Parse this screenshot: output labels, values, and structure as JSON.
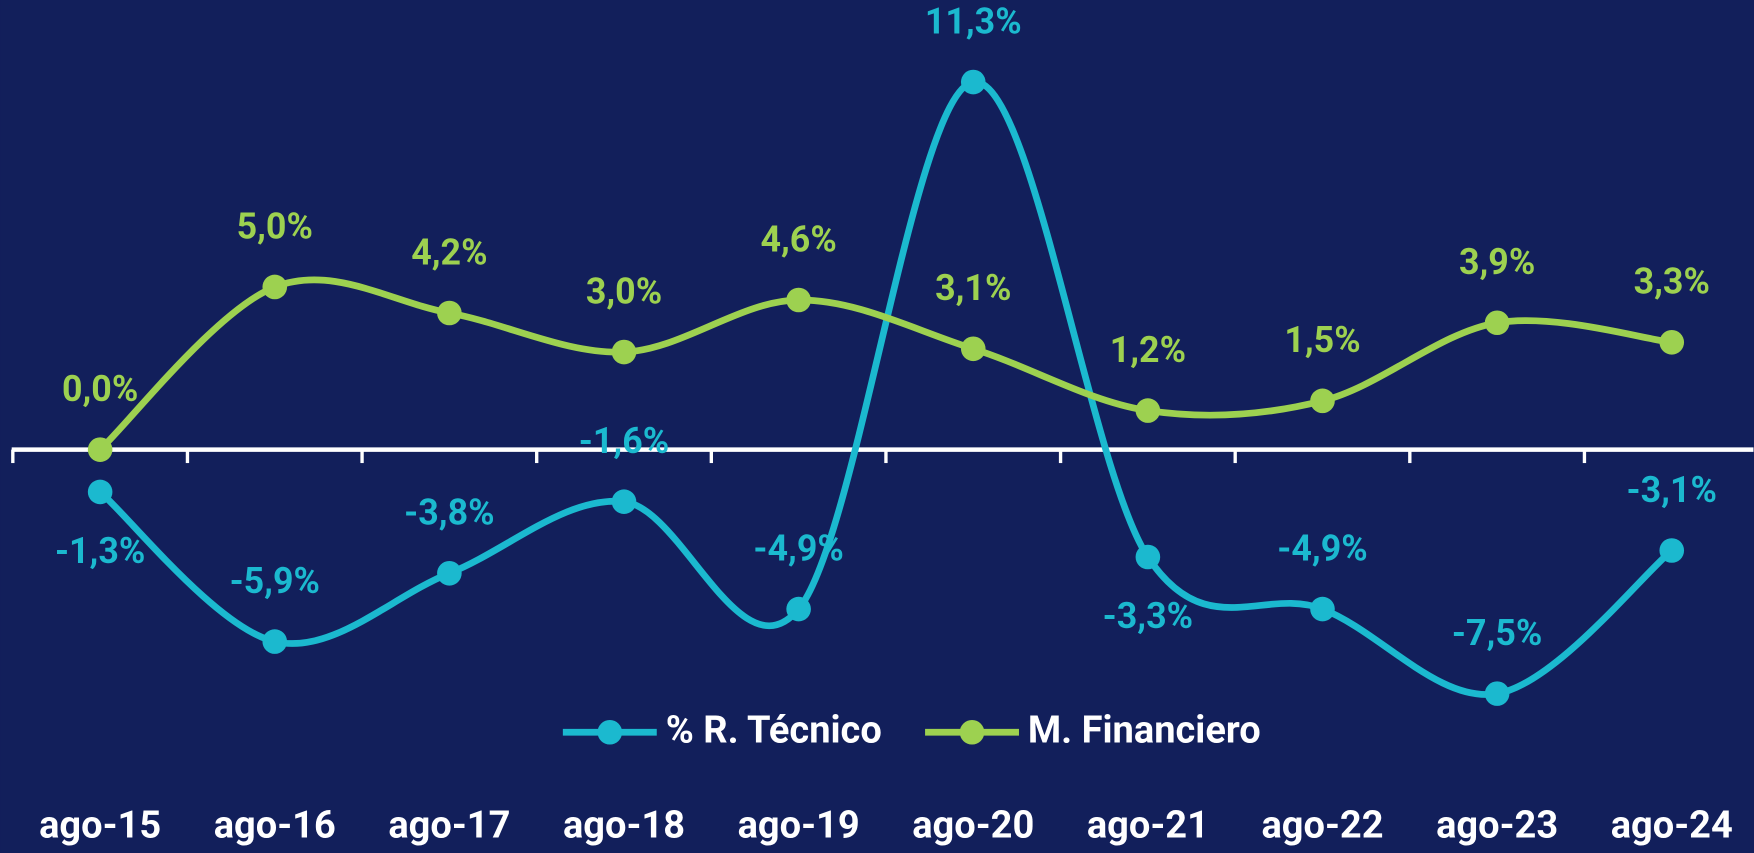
{
  "chart_data": {
    "type": "line",
    "categories": [
      "ago-15",
      "ago-16",
      "ago-17",
      "ago-18",
      "ago-19",
      "ago-20",
      "ago-21",
      "ago-22",
      "ago-23",
      "ago-24"
    ],
    "series": [
      {
        "name": "% R. Técnico",
        "color": "#1bb9cf",
        "values": [
          -1.3,
          -5.9,
          -3.8,
          -1.6,
          -4.9,
          11.3,
          -3.3,
          -4.9,
          -7.5,
          -3.1
        ],
        "value_labels": [
          "-1,3%",
          "-5,9%",
          "-3,8%",
          "-1,6%",
          "-4,9%",
          "11,3%",
          "-3,3%",
          "-4,9%",
          "-7,5%",
          "-3,1%"
        ]
      },
      {
        "name": "M. Financiero",
        "color": "#9dd150",
        "values": [
          0.0,
          5.0,
          4.2,
          3.0,
          4.6,
          3.1,
          1.2,
          1.5,
          3.9,
          3.3
        ],
        "value_labels": [
          "0,0%",
          "5,0%",
          "4,2%",
          "3,0%",
          "4,6%",
          "3,1%",
          "1,2%",
          "1,5%",
          "3,9%",
          "3,3%"
        ]
      }
    ],
    "ylim": [
      -8,
      12
    ],
    "legend": "bottom"
  }
}
